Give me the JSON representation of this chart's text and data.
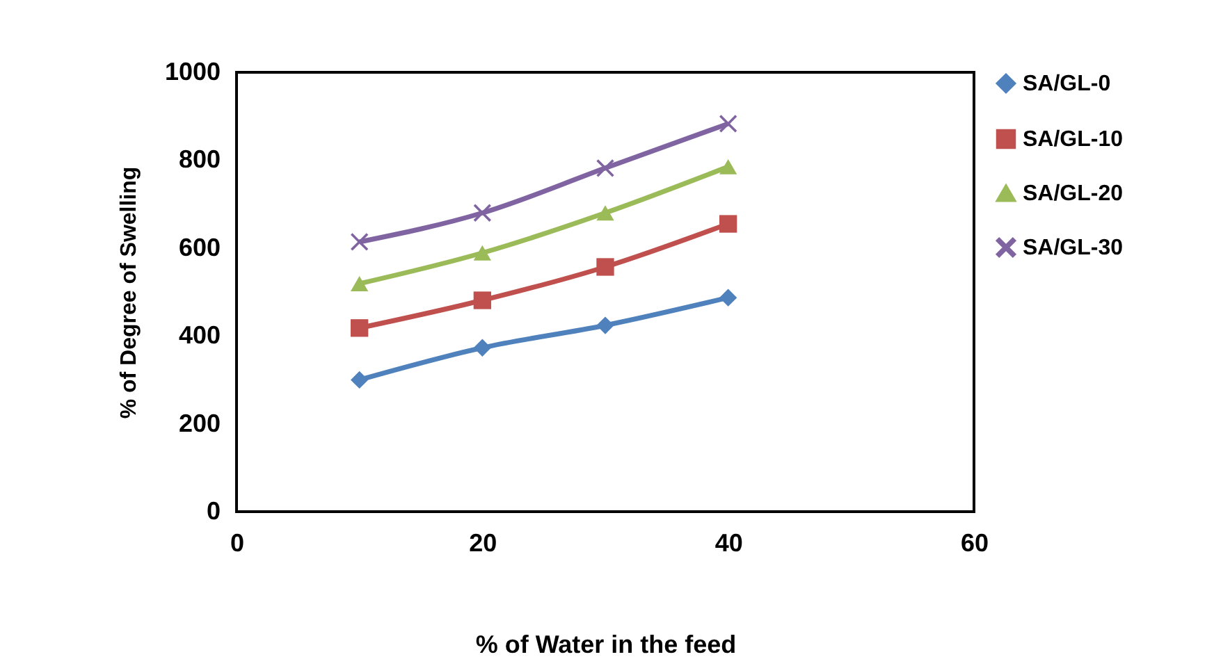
{
  "chart_data": {
    "type": "line",
    "xlabel": "% of Water in the feed",
    "ylabel": "% of Degree of Swelling",
    "x": [
      10,
      20,
      30,
      40
    ],
    "series": [
      {
        "name": "SA/GL-0",
        "color": "#4f81bd",
        "marker": "diamond",
        "values": [
          300,
          373,
          424,
          487
        ]
      },
      {
        "name": "SA/GL-10",
        "color": "#c0504d",
        "marker": "square",
        "values": [
          418,
          481,
          557,
          655
        ]
      },
      {
        "name": "SA/GL-20",
        "color": "#9bbb59",
        "marker": "triangle",
        "values": [
          519,
          589,
          680,
          785
        ]
      },
      {
        "name": "SA/GL-30",
        "color": "#8064a2",
        "marker": "cross",
        "values": [
          614,
          680,
          782,
          883
        ]
      }
    ],
    "xlim": [
      0,
      60
    ],
    "xticks": [
      0,
      20,
      40,
      60
    ],
    "ylim": [
      0,
      1000
    ],
    "yticks": [
      0,
      200,
      400,
      600,
      800,
      1000
    ],
    "grid": false,
    "legend": "right",
    "line_style": "solid"
  }
}
